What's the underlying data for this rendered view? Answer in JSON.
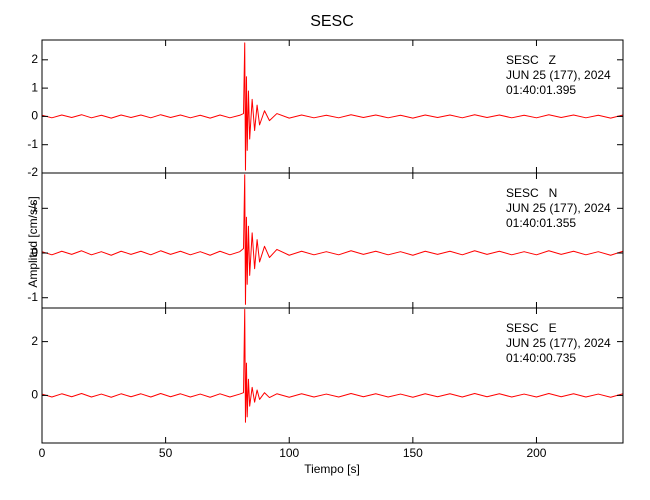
{
  "chart_data": [
    {
      "type": "line",
      "title": "SESC",
      "color": "#ff0000",
      "annotations": [
        "SESC   Z",
        "JUN 25 (177), 2024",
        "01:40:01.395"
      ],
      "xlim": [
        0,
        235
      ],
      "xticks": [
        0,
        50,
        100,
        150,
        200
      ],
      "ylim": [
        -2,
        2.7
      ],
      "yticks": [
        -2,
        -1,
        0,
        1,
        2
      ],
      "x": [
        0,
        4,
        8,
        12,
        16,
        20,
        24,
        28,
        32,
        36,
        40,
        44,
        48,
        52,
        56,
        60,
        64,
        68,
        72,
        76,
        80,
        81.5,
        82,
        82.3,
        82.7,
        83,
        83.5,
        84,
        85,
        86,
        87,
        88,
        90,
        92,
        95,
        100,
        105,
        110,
        115,
        120,
        125,
        130,
        135,
        140,
        145,
        150,
        155,
        160,
        165,
        170,
        175,
        180,
        185,
        190,
        195,
        200,
        205,
        210,
        215,
        220,
        225,
        230,
        235
      ],
      "values": [
        0.04,
        -0.05,
        0.05,
        -0.04,
        0.06,
        -0.05,
        0.04,
        -0.06,
        0.05,
        -0.04,
        0.05,
        -0.05,
        0.06,
        -0.04,
        0.05,
        -0.05,
        0.04,
        -0.06,
        0.05,
        -0.05,
        0.04,
        0.1,
        2.6,
        -1.9,
        1.4,
        -1.2,
        0.9,
        -0.8,
        0.6,
        -0.5,
        0.4,
        -0.3,
        0.2,
        -0.15,
        0.1,
        -0.06,
        0.05,
        -0.05,
        0.04,
        -0.05,
        0.06,
        -0.04,
        0.05,
        -0.05,
        0.04,
        -0.06,
        0.05,
        -0.04,
        0.05,
        -0.05,
        0.06,
        -0.04,
        0.05,
        -0.05,
        0.04,
        -0.05,
        0.06,
        -0.04,
        0.05,
        -0.05,
        0.04,
        -0.06,
        0.05
      ]
    },
    {
      "type": "line",
      "ylabel": "Amplitud [cm/s/s]",
      "color": "#ff0000",
      "annotations": [
        "SESC   N",
        "JUN 25 (177), 2024",
        "01:40:01.355"
      ],
      "xlim": [
        0,
        235
      ],
      "xticks": [
        0,
        50,
        100,
        150,
        200
      ],
      "ylim": [
        -1.23,
        1.79
      ],
      "yticks": [
        -1,
        0,
        1
      ],
      "x": [
        0,
        4,
        8,
        12,
        16,
        20,
        24,
        28,
        32,
        36,
        40,
        44,
        48,
        52,
        56,
        60,
        64,
        68,
        72,
        76,
        80,
        81.5,
        82,
        82.3,
        82.7,
        83,
        83.5,
        84,
        85,
        86,
        87,
        88,
        90,
        92,
        95,
        100,
        105,
        110,
        115,
        120,
        125,
        130,
        135,
        140,
        145,
        150,
        155,
        160,
        165,
        170,
        175,
        180,
        185,
        190,
        195,
        200,
        205,
        210,
        215,
        220,
        225,
        230,
        235
      ],
      "values": [
        0.03,
        -0.04,
        0.04,
        -0.03,
        0.05,
        -0.04,
        0.03,
        -0.05,
        0.04,
        -0.03,
        0.04,
        -0.04,
        0.05,
        -0.03,
        0.04,
        -0.04,
        0.03,
        -0.05,
        0.04,
        -0.04,
        0.03,
        0.1,
        1.75,
        -1.15,
        0.8,
        -0.7,
        0.6,
        -0.5,
        0.45,
        -0.35,
        0.3,
        -0.2,
        0.15,
        -0.1,
        0.08,
        -0.05,
        0.04,
        -0.04,
        0.03,
        -0.04,
        0.05,
        -0.03,
        0.04,
        -0.04,
        0.03,
        -0.05,
        0.04,
        -0.03,
        0.04,
        -0.04,
        0.05,
        -0.03,
        0.04,
        -0.04,
        0.03,
        -0.04,
        0.05,
        -0.03,
        0.04,
        -0.04,
        0.03,
        -0.05,
        0.04
      ]
    },
    {
      "type": "line",
      "xlabel": "Tiempo [s]",
      "color": "#ff0000",
      "annotations": [
        "SESC   E",
        "JUN 25 (177), 2024",
        "01:40:00.735"
      ],
      "xlim": [
        0,
        235
      ],
      "xticks": [
        0,
        50,
        100,
        150,
        200
      ],
      "ylim": [
        -1.77,
        3.25
      ],
      "yticks": [
        0,
        2
      ],
      "x": [
        0,
        4,
        8,
        12,
        16,
        20,
        24,
        28,
        32,
        36,
        40,
        44,
        48,
        52,
        56,
        60,
        64,
        68,
        72,
        76,
        80,
        81.5,
        82,
        82.3,
        82.7,
        83,
        83.5,
        84,
        85,
        86,
        87,
        88,
        90,
        92,
        95,
        100,
        105,
        110,
        115,
        120,
        125,
        130,
        135,
        140,
        145,
        150,
        155,
        160,
        165,
        170,
        175,
        180,
        185,
        190,
        195,
        200,
        205,
        210,
        215,
        220,
        225,
        230,
        235
      ],
      "values": [
        0.05,
        -0.06,
        0.06,
        -0.05,
        0.07,
        -0.06,
        0.05,
        -0.07,
        0.06,
        -0.05,
        0.06,
        -0.06,
        0.07,
        -0.05,
        0.06,
        -0.06,
        0.05,
        -0.07,
        0.06,
        -0.06,
        0.05,
        0.1,
        3.2,
        -1.0,
        1.2,
        -0.8,
        0.6,
        -0.4,
        0.3,
        -0.25,
        0.2,
        -0.15,
        0.1,
        -0.08,
        0.06,
        -0.07,
        0.06,
        -0.06,
        0.05,
        -0.06,
        0.07,
        -0.05,
        0.06,
        -0.06,
        0.05,
        -0.07,
        0.06,
        -0.05,
        0.06,
        -0.06,
        0.07,
        -0.05,
        0.06,
        -0.06,
        0.05,
        -0.06,
        0.07,
        -0.05,
        0.06,
        -0.06,
        0.05,
        -0.07,
        0.06
      ]
    }
  ]
}
